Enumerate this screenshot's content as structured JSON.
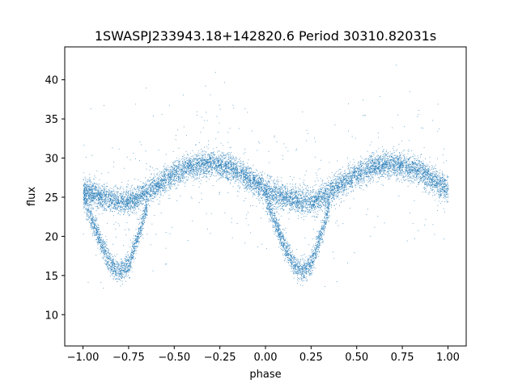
{
  "chart_data": {
    "type": "scatter",
    "title": "1SWASPJ233943.18+142820.6 Period 30310.82031s",
    "xlabel": "phase",
    "ylabel": "flux",
    "xlim": [
      -1.1,
      1.1
    ],
    "ylim": [
      6.0,
      44.2
    ],
    "x_ticks": [
      -1.0,
      -0.75,
      -0.5,
      -0.25,
      0.0,
      0.25,
      0.5,
      0.75,
      1.0
    ],
    "x_tick_labels": [
      "−1.00",
      "−0.75",
      "−0.50",
      "−0.25",
      "0.00",
      "0.25",
      "0.50",
      "0.75",
      "1.00"
    ],
    "y_ticks": [
      10,
      15,
      20,
      25,
      30,
      35,
      40
    ],
    "y_tick_labels": [
      "10",
      "15",
      "20",
      "25",
      "30",
      "35",
      "40"
    ],
    "grid": false,
    "marker_color": "#1f77b4",
    "series": [
      {
        "description_points": "phase-folded light curve, repeated over two cycles (phase -1 to 1)",
        "phase_profile_x": [
          -1.0,
          -0.9,
          -0.8,
          -0.75,
          -0.7,
          -0.6,
          -0.5,
          -0.4,
          -0.3,
          -0.2,
          -0.1,
          0.0,
          0.1,
          0.2,
          0.25,
          0.3,
          0.4,
          0.5,
          0.6,
          0.7,
          0.8,
          0.9,
          1.0
        ],
        "upper_branch_y": [
          26.0,
          25.0,
          24.5,
          24.5,
          25.0,
          26.5,
          28.0,
          29.0,
          29.3,
          28.8,
          27.5,
          26.0,
          25.0,
          24.5,
          24.5,
          25.0,
          26.5,
          28.0,
          29.0,
          29.3,
          28.8,
          27.5,
          26.0
        ],
        "lower_branch_x": [
          -1.0,
          -0.95,
          -0.9,
          -0.85,
          -0.8,
          -0.75,
          -0.7,
          -0.65,
          0.0,
          0.05,
          0.1,
          0.15,
          0.2,
          0.25,
          0.3,
          0.35
        ],
        "lower_branch_y": [
          25.0,
          22.0,
          19.0,
          16.5,
          15.5,
          16.5,
          20.0,
          24.0,
          25.0,
          22.0,
          19.0,
          16.5,
          15.5,
          16.5,
          20.0,
          24.0
        ]
      }
    ]
  }
}
